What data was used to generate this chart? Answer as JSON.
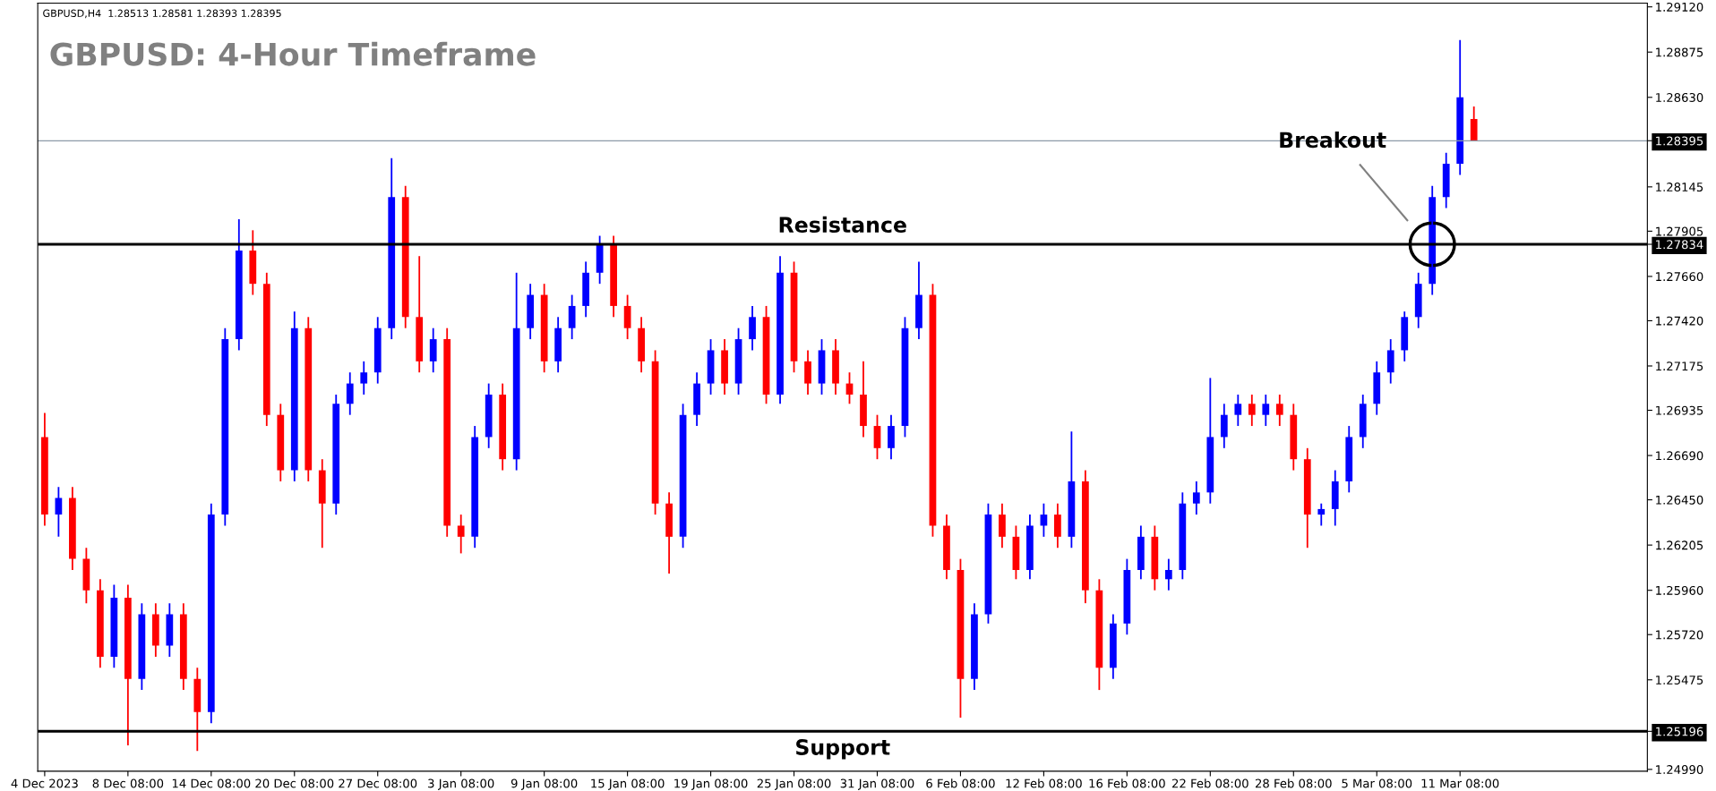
{
  "chart_data": {
    "type": "candlestick",
    "title": "GBPUSD: 4-Hour Timeframe",
    "annotations": [
      "GBPUSD,H4  1.28513 1.28581 1.28393 1.28395",
      "Breakout"
    ],
    "categories": [
      "4 Dec 2023",
      null,
      null,
      null,
      null,
      null,
      "8 Dec 08:00",
      null,
      null,
      null,
      null,
      null,
      "14 Dec 08:00",
      null,
      null,
      null,
      null,
      null,
      "20 Dec 08:00",
      null,
      null,
      null,
      null,
      null,
      "27 Dec 08:00",
      null,
      null,
      null,
      null,
      null,
      "3 Jan 08:00",
      null,
      null,
      null,
      null,
      null,
      "9 Jan 08:00",
      null,
      null,
      null,
      null,
      null,
      "15 Jan 08:00",
      null,
      null,
      null,
      null,
      null,
      "19 Jan 08:00",
      null,
      null,
      null,
      null,
      null,
      "25 Jan 08:00",
      null,
      null,
      null,
      null,
      null,
      "31 Jan 08:00",
      null,
      null,
      null,
      null,
      null,
      "6 Feb 08:00",
      null,
      null,
      null,
      null,
      null,
      "12 Feb 08:00",
      null,
      null,
      null,
      null,
      null,
      "16 Feb 08:00",
      null,
      null,
      null,
      null,
      null,
      "22 Feb 08:00",
      null,
      null,
      null,
      null,
      null,
      "28 Feb 08:00",
      null,
      null,
      null,
      null,
      null,
      "5 Mar 08:00",
      null,
      null,
      null,
      null,
      null,
      "11 Mar 08:00",
      null,
      null,
      null,
      null,
      null,
      null,
      null,
      null,
      null,
      null,
      null,
      null,
      null
    ],
    "ohlc": [
      [
        1.2679,
        1.2692,
        1.2631,
        1.2637
      ],
      [
        1.2637,
        1.2652,
        1.2625,
        1.2646
      ],
      [
        1.2646,
        1.2652,
        1.2607,
        1.2613
      ],
      [
        1.2613,
        1.2619,
        1.2589,
        1.2596
      ],
      [
        1.2596,
        1.2602,
        1.2554,
        1.256
      ],
      [
        1.256,
        1.2599,
        1.2554,
        1.2592
      ],
      [
        1.2592,
        1.2599,
        1.2512,
        1.2548
      ],
      [
        1.2548,
        1.2589,
        1.2542,
        1.2583
      ],
      [
        1.2583,
        1.2589,
        1.256,
        1.2566
      ],
      [
        1.2566,
        1.2589,
        1.256,
        1.2583
      ],
      [
        1.2583,
        1.2589,
        1.2542,
        1.2548
      ],
      [
        1.2548,
        1.2554,
        1.2509,
        1.253
      ],
      [
        1.253,
        1.2643,
        1.2524,
        1.2637
      ],
      [
        1.2637,
        1.2738,
        1.2631,
        1.2732
      ],
      [
        1.2732,
        1.2797,
        1.2726,
        1.278
      ],
      [
        1.278,
        1.2791,
        1.2756,
        1.2762
      ],
      [
        1.2762,
        1.2768,
        1.2685,
        1.2691
      ],
      [
        1.2691,
        1.2697,
        1.2655,
        1.2661
      ],
      [
        1.2661,
        1.2747,
        1.2655,
        1.2738
      ],
      [
        1.2738,
        1.2744,
        1.2655,
        1.2661
      ],
      [
        1.2661,
        1.2667,
        1.2619,
        1.2643
      ],
      [
        1.2643,
        1.2702,
        1.2637,
        1.2697
      ],
      [
        1.2697,
        1.2714,
        1.2691,
        1.2708
      ],
      [
        1.2708,
        1.272,
        1.2702,
        1.2714
      ],
      [
        1.2714,
        1.2744,
        1.2708,
        1.2738
      ],
      [
        1.2738,
        1.283,
        1.2732,
        1.2809
      ],
      [
        1.2809,
        1.2815,
        1.2738,
        1.2744
      ],
      [
        1.2744,
        1.2777,
        1.2714,
        1.272
      ],
      [
        1.272,
        1.2738,
        1.2714,
        1.2732
      ],
      [
        1.2732,
        1.2738,
        1.2625,
        1.2631
      ],
      [
        1.2631,
        1.2637,
        1.2616,
        1.2625
      ],
      [
        1.2625,
        1.2685,
        1.2619,
        1.2679
      ],
      [
        1.2679,
        1.2708,
        1.2673,
        1.2702
      ],
      [
        1.2702,
        1.2708,
        1.2661,
        1.2667
      ],
      [
        1.2667,
        1.2768,
        1.2661,
        1.2738
      ],
      [
        1.2738,
        1.2762,
        1.2732,
        1.2756
      ],
      [
        1.2756,
        1.2762,
        1.2714,
        1.272
      ],
      [
        1.272,
        1.2744,
        1.2714,
        1.2738
      ],
      [
        1.2738,
        1.2756,
        1.2732,
        1.275
      ],
      [
        1.275,
        1.2774,
        1.2744,
        1.2768
      ],
      [
        1.2768,
        1.2788,
        1.2762,
        1.2783
      ],
      [
        1.2783,
        1.2788,
        1.2744,
        1.275
      ],
      [
        1.275,
        1.2756,
        1.2732,
        1.2738
      ],
      [
        1.2738,
        1.2744,
        1.2714,
        1.272
      ],
      [
        1.272,
        1.2726,
        1.2637,
        1.2643
      ],
      [
        1.2643,
        1.2649,
        1.2605,
        1.2625
      ],
      [
        1.2625,
        1.2697,
        1.2619,
        1.2691
      ],
      [
        1.2691,
        1.2714,
        1.2685,
        1.2708
      ],
      [
        1.2708,
        1.2732,
        1.2702,
        1.2726
      ],
      [
        1.2726,
        1.2732,
        1.2702,
        1.2708
      ],
      [
        1.2708,
        1.2738,
        1.2702,
        1.2732
      ],
      [
        1.2732,
        1.275,
        1.2726,
        1.2744
      ],
      [
        1.2744,
        1.275,
        1.2697,
        1.2702
      ],
      [
        1.2702,
        1.2777,
        1.2697,
        1.2768
      ],
      [
        1.2768,
        1.2774,
        1.2714,
        1.272
      ],
      [
        1.272,
        1.2726,
        1.2702,
        1.2708
      ],
      [
        1.2708,
        1.2732,
        1.2702,
        1.2726
      ],
      [
        1.2726,
        1.2732,
        1.2702,
        1.2708
      ],
      [
        1.2708,
        1.2714,
        1.2697,
        1.2702
      ],
      [
        1.2702,
        1.272,
        1.2679,
        1.2685
      ],
      [
        1.2685,
        1.2691,
        1.2667,
        1.2673
      ],
      [
        1.2673,
        1.2691,
        1.2667,
        1.2685
      ],
      [
        1.2685,
        1.2744,
        1.2679,
        1.2738
      ],
      [
        1.2738,
        1.2774,
        1.2732,
        1.2756
      ],
      [
        1.2756,
        1.2762,
        1.2625,
        1.2631
      ],
      [
        1.2631,
        1.2637,
        1.2602,
        1.2607
      ],
      [
        1.2607,
        1.2613,
        1.2527,
        1.2548
      ],
      [
        1.2548,
        1.2589,
        1.2542,
        1.2583
      ],
      [
        1.2583,
        1.2643,
        1.2578,
        1.2637
      ],
      [
        1.2637,
        1.2643,
        1.2619,
        1.2625
      ],
      [
        1.2625,
        1.2631,
        1.2602,
        1.2607
      ],
      [
        1.2607,
        1.2637,
        1.2602,
        1.2631
      ],
      [
        1.2631,
        1.2643,
        1.2625,
        1.2637
      ],
      [
        1.2637,
        1.2643,
        1.2619,
        1.2625
      ],
      [
        1.2625,
        1.2682,
        1.2619,
        1.2655
      ],
      [
        1.2655,
        1.2661,
        1.2589,
        1.2596
      ],
      [
        1.2596,
        1.2602,
        1.2542,
        1.2554
      ],
      [
        1.2554,
        1.2583,
        1.2548,
        1.2578
      ],
      [
        1.2578,
        1.2613,
        1.2572,
        1.2607
      ],
      [
        1.2607,
        1.2631,
        1.2602,
        1.2625
      ],
      [
        1.2625,
        1.2631,
        1.2596,
        1.2602
      ],
      [
        1.2602,
        1.2613,
        1.2596,
        1.2607
      ],
      [
        1.2607,
        1.2649,
        1.2602,
        1.2643
      ],
      [
        1.2643,
        1.2655,
        1.2637,
        1.2649
      ],
      [
        1.2649,
        1.2711,
        1.2643,
        1.2679
      ],
      [
        1.2679,
        1.2697,
        1.2673,
        1.2691
      ],
      [
        1.2691,
        1.2702,
        1.2685,
        1.2697
      ],
      [
        1.2697,
        1.2702,
        1.2685,
        1.2691
      ],
      [
        1.2691,
        1.2702,
        1.2685,
        1.2697
      ],
      [
        1.2697,
        1.2702,
        1.2685,
        1.2691
      ],
      [
        1.2691,
        1.2697,
        1.2661,
        1.2667
      ],
      [
        1.2667,
        1.2673,
        1.2619,
        1.2637
      ],
      [
        1.2637,
        1.2643,
        1.2631,
        1.264
      ],
      [
        1.264,
        1.2661,
        1.2631,
        1.2655
      ],
      [
        1.2655,
        1.2685,
        1.2649,
        1.2679
      ],
      [
        1.2679,
        1.2702,
        1.2673,
        1.2697
      ],
      [
        1.2697,
        1.272,
        1.2691,
        1.2714
      ],
      [
        1.2714,
        1.2732,
        1.2708,
        1.2726
      ],
      [
        1.2726,
        1.2747,
        1.272,
        1.2744
      ],
      [
        1.2744,
        1.2768,
        1.2738,
        1.2762
      ],
      [
        1.2762,
        1.2815,
        1.2756,
        1.2809
      ],
      [
        1.2809,
        1.2833,
        1.2803,
        1.2827
      ],
      [
        1.2827,
        1.2894,
        1.2821,
        1.2863
      ],
      [
        1.28513,
        1.28581,
        1.28393,
        1.28395
      ],
      null,
      null,
      null,
      null,
      null,
      null,
      null,
      null,
      null,
      null,
      null,
      null
    ],
    "colors": [
      "#ff0000",
      "#0000ff",
      "#ff0000",
      "#ff0000",
      "#ff0000",
      "#0000ff",
      "#ff0000",
      "#0000ff",
      "#ff0000",
      "#0000ff",
      "#ff0000",
      "#ff0000",
      "#0000ff",
      "#0000ff",
      "#0000ff",
      "#ff0000",
      "#ff0000",
      "#ff0000",
      "#0000ff",
      "#ff0000",
      "#ff0000",
      "#0000ff",
      "#0000ff",
      "#0000ff",
      "#0000ff",
      "#0000ff",
      "#ff0000",
      "#ff0000",
      "#0000ff",
      "#ff0000",
      "#ff0000",
      "#0000ff",
      "#0000ff",
      "#ff0000",
      "#0000ff",
      "#0000ff",
      "#ff0000",
      "#0000ff",
      "#0000ff",
      "#0000ff",
      "#0000ff",
      "#ff0000",
      "#ff0000",
      "#ff0000",
      "#ff0000",
      "#ff0000",
      "#0000ff",
      "#0000ff",
      "#0000ff",
      "#ff0000",
      "#0000ff",
      "#0000ff",
      "#ff0000",
      "#0000ff",
      "#ff0000",
      "#ff0000",
      "#0000ff",
      "#ff0000",
      "#ff0000",
      "#ff0000",
      "#ff0000",
      "#0000ff",
      "#0000ff",
      "#0000ff",
      "#ff0000",
      "#ff0000",
      "#ff0000",
      "#0000ff",
      "#0000ff",
      "#ff0000",
      "#ff0000",
      "#0000ff",
      "#0000ff",
      "#ff0000",
      "#0000ff",
      "#ff0000",
      "#ff0000",
      "#0000ff",
      "#0000ff",
      "#0000ff",
      "#ff0000",
      "#0000ff",
      "#0000ff",
      "#0000ff",
      "#0000ff",
      "#0000ff",
      "#0000ff",
      "#ff0000",
      "#0000ff",
      "#ff0000",
      "#ff0000",
      "#ff0000",
      "#0000ff",
      "#0000ff",
      "#0000ff",
      "#0000ff",
      "#0000ff",
      "#0000ff",
      "#0000ff",
      "#0000ff",
      "#0000ff",
      "#0000ff",
      "#0000ff",
      "#ff0000",
      null,
      null,
      null,
      null,
      null,
      null,
      null,
      null,
      null,
      null,
      null,
      null
    ],
    "ylim": [
      1.2498,
      1.2914
    ],
    "yticks": [
      {
        "value": 1.2499,
        "label": "1.24990"
      },
      {
        "value": 1.25475,
        "label": "1.25475"
      },
      {
        "value": 1.2572,
        "label": "1.25720"
      },
      {
        "value": 1.2596,
        "label": "1.25960"
      },
      {
        "value": 1.26205,
        "label": "1.26205"
      },
      {
        "value": 1.2645,
        "label": "1.26450"
      },
      {
        "value": 1.2669,
        "label": "1.26690"
      },
      {
        "value": 1.26935,
        "label": "1.26935"
      },
      {
        "value": 1.27175,
        "label": "1.27175"
      },
      {
        "value": 1.2742,
        "label": "1.27420"
      },
      {
        "value": 1.2766,
        "label": "1.27660"
      },
      {
        "value": 1.27905,
        "label": "1.27905"
      },
      {
        "value": 1.25196,
        "label": "1.25196"
      },
      {
        "value": 1.27834,
        "label": "1.27834"
      },
      {
        "value": 1.28145,
        "label": "1.28145"
      },
      {
        "value": 1.28395,
        "label": "1.28395"
      },
      {
        "value": 1.2863,
        "label": "1.28630"
      },
      {
        "value": 1.28875,
        "label": "1.28875"
      },
      {
        "value": 1.2912,
        "label": "1.29120"
      }
    ],
    "ref_lines": [
      {
        "axis": "y",
        "value": 1.27834,
        "label": "Resistance",
        "color": "#000000"
      },
      {
        "axis": "y",
        "value": 1.25196,
        "label": "Support",
        "color": "#000000"
      },
      {
        "axis": "y",
        "value": 1.28395,
        "label": null,
        "color": "#8c9aa8"
      }
    ],
    "grid": false,
    "legend": false
  }
}
